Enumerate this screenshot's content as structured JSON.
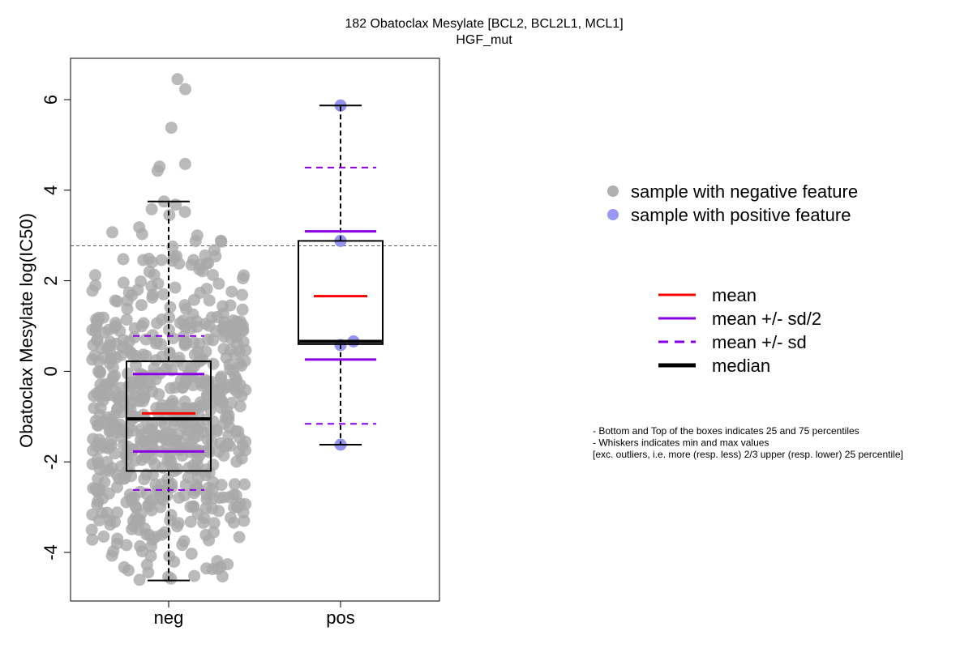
{
  "chart_data": {
    "type": "boxplot-beeswarm",
    "title": "182 Obatoclax Mesylate [BCL2, BCL2L1, MCL1]",
    "subtitle": "HGF_mut",
    "ylabel": "Obatoclax Mesylate log(IC50)",
    "categories": [
      "neg",
      "pos"
    ],
    "ylim": [
      -5,
      7
    ],
    "yticks": [
      -4,
      -2,
      0,
      2,
      4,
      6
    ],
    "ytick_labels": [
      "-4",
      "-2",
      "0",
      "2",
      "4",
      "6"
    ],
    "threshold": 2.77,
    "groups": [
      {
        "name": "neg",
        "color": "#A9A9A9",
        "n_points": 680,
        "box": {
          "q1": -2.2,
          "median": -1.05,
          "q3": 0.22,
          "whisker_low": -4.62,
          "whisker_high": 3.75
        },
        "mean": -0.93,
        "mean_plus_half_sd": -0.06,
        "mean_minus_half_sd": -1.77,
        "mean_plus_sd": 0.78,
        "mean_minus_sd": -2.62,
        "high_points": [
          6.45,
          6.23,
          5.38,
          4.58,
          4.52,
          4.43,
          3.75,
          3.68,
          3.58,
          3.52,
          3.45,
          3.18
        ]
      },
      {
        "name": "pos",
        "color": "#8E8EF2",
        "points": [
          5.87,
          2.88,
          0.66,
          0.58,
          -1.62
        ],
        "box": {
          "q1": 0.6,
          "median": 0.66,
          "q3": 2.88,
          "whisker_low": -1.62,
          "whisker_high": 5.87
        },
        "mean": 1.66,
        "mean_plus_half_sd": 3.09,
        "mean_minus_half_sd": 0.26,
        "mean_plus_sd": 4.5,
        "mean_minus_sd": -1.16
      }
    ]
  },
  "legend_points": [
    {
      "label": "sample with negative feature",
      "color": "#B0B0B0"
    },
    {
      "label": "sample with positive feature",
      "color": "#9999F5"
    }
  ],
  "legend_lines": [
    {
      "label": "mean",
      "color": "#FF0000",
      "style": "solid"
    },
    {
      "label": "mean +/- sd/2",
      "color": "#8A00E6",
      "style": "solid"
    },
    {
      "label": "mean +/- sd",
      "color": "#8A00E6",
      "style": "dashed"
    },
    {
      "label": "median",
      "color": "#000000",
      "style": "bold"
    }
  ],
  "notes": [
    "- Bottom and Top of the boxes indicates 25 and 75 percentiles",
    "- Whiskers indicates min and max values",
    "[exc. outliers, i.e. more (resp. less) 2/3 upper (resp. lower) 25 percentile]"
  ]
}
